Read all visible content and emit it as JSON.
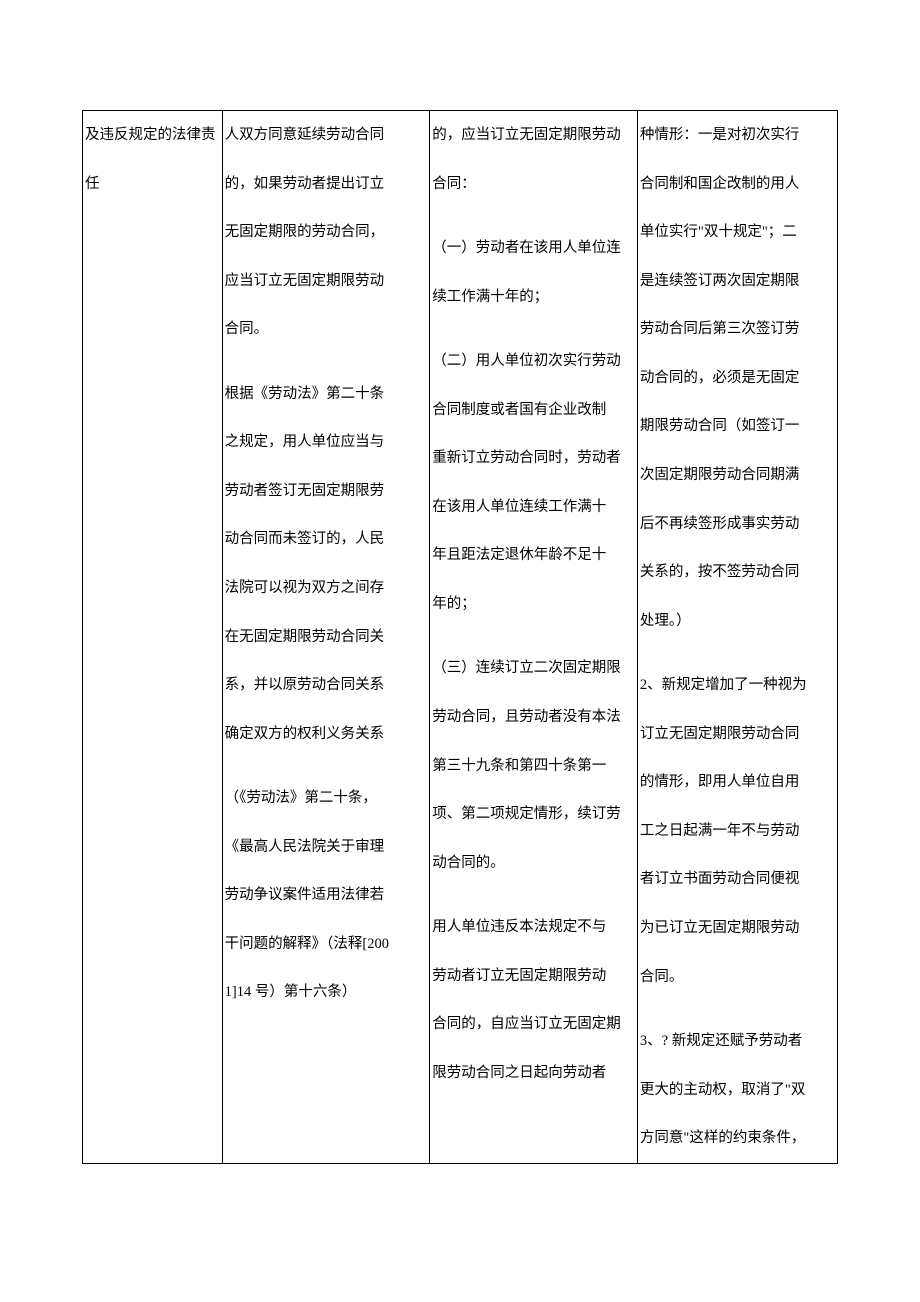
{
  "border_color": "#000000",
  "background_color": "#ffffff",
  "text_color": "#000000",
  "font_family": "SimSun",
  "font_size_pt": 11,
  "line_height": 3.35,
  "columns": [
    {
      "width_pct": 18.5
    },
    {
      "width_pct": 27.5
    },
    {
      "width_pct": 27.5
    },
    {
      "width_pct": 26.5
    }
  ],
  "col1": {
    "p1": "及违反规定的法律责",
    "p2": "任"
  },
  "col2": {
    "p1": "人双方同意延续劳动合同",
    "p2": "的，如果劳动者提出订立",
    "p3": "无固定期限的劳动合同，",
    "p4": "应当订立无固定期限劳动",
    "p5": "合同。",
    "p6": "根据《劳动法》第二十条",
    "p7": "之规定，用人单位应当与",
    "p8": "劳动者签订无固定期限劳",
    "p9": "动合同而未签订的，人民",
    "p10": "法院可以视为双方之间存",
    "p11": "在无固定期限劳动合同关",
    "p12": "系，并以原劳动合同关系",
    "p13": "确定双方的权利义务关系",
    "p14": "（《劳动法》第二十条，",
    "p15": "《最高人民法院关于审理",
    "p16": "劳动争议案件适用法律若",
    "p17": "干问题的解释》（法释[200",
    "p18": "1]14 号）第十六条）"
  },
  "col3": {
    "p1": "的，应当订立无固定期限劳动",
    "p2": "合同：",
    "p3": "（一）劳动者在该用人单位连",
    "p4": "续工作满十年的；",
    "p5": "（二）用人单位初次实行劳动",
    "p6": "合同制度或者国有企业改制",
    "p7": "重新订立劳动合同时，劳动者",
    "p8": "在该用人单位连续工作满十",
    "p9": "年且距法定退休年龄不足十",
    "p10": "年的；",
    "p11": "（三）连续订立二次固定期限",
    "p12": "劳动合同，且劳动者没有本法",
    "p13": "第三十九条和第四十条第一",
    "p14": "项、第二项规定情形，续订劳",
    "p15": "动合同的。",
    "p16": "用人单位违反本法规定不与",
    "p17": "劳动者订立无固定期限劳动",
    "p18": "合同的，自应当订立无固定期",
    "p19": "限劳动合同之日起向劳动者"
  },
  "col4": {
    "p1": "种情形：一是对初次实行",
    "p2": "合同制和国企改制的用人",
    "p3": "单位实行\"双十规定\"；二",
    "p4": "是连续签订两次固定期限",
    "p5": "劳动合同后第三次签订劳",
    "p6": "动合同的，必须是无固定",
    "p7": "期限劳动合同（如签订一",
    "p8": "次固定期限劳动合同期满",
    "p9": "后不再续签形成事实劳动",
    "p10": "关系的，按不签劳动合同",
    "p11": "处理。）",
    "p12": "2、新规定增加了一种视为",
    "p13": "订立无固定期限劳动合同",
    "p14": "的情形，即用人单位自用",
    "p15": "工之日起满一年不与劳动",
    "p16": "者订立书面劳动合同便视",
    "p17": "为已订立无固定期限劳动",
    "p18": "合同。",
    "p19": "3、? 新规定还赋予劳动者",
    "p20": "更大的主动权，取消了\"双",
    "p21": "方同意\"这样的约束条件，"
  }
}
